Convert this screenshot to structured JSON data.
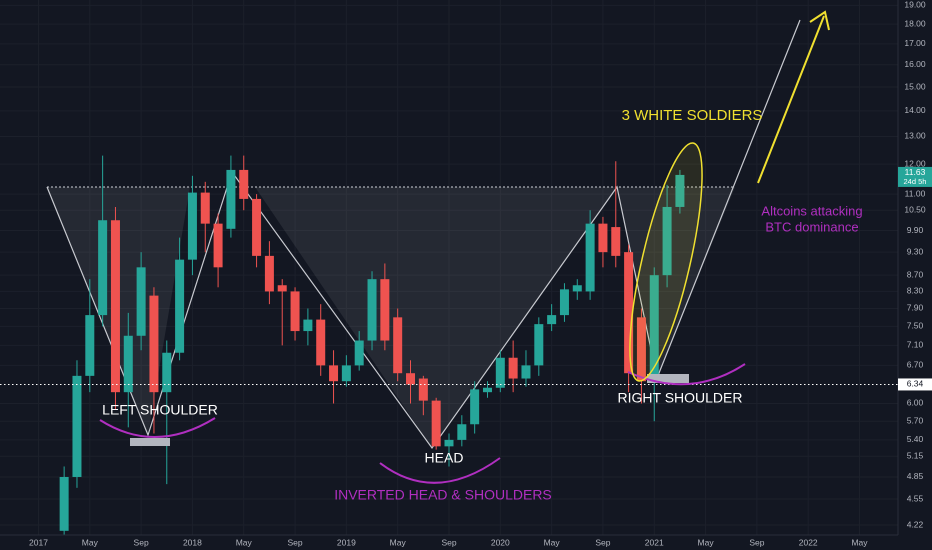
{
  "chart_data": {
    "type": "candlestick",
    "log_scale": true,
    "grid": true,
    "colors": {
      "up": "#26a69a",
      "down": "#ef5350"
    },
    "x": [
      "2017-03",
      "2017-04",
      "2017-05",
      "2017-06",
      "2017-07",
      "2017-08",
      "2017-09",
      "2017-10",
      "2017-11",
      "2017-12",
      "2018-01",
      "2018-02",
      "2018-03",
      "2018-04",
      "2018-05",
      "2018-06",
      "2018-07",
      "2018-08",
      "2018-09",
      "2018-10",
      "2018-11",
      "2018-12",
      "2019-01",
      "2019-02",
      "2019-03",
      "2019-04",
      "2019-05",
      "2019-06",
      "2019-07",
      "2019-08",
      "2019-09",
      "2019-10",
      "2019-11",
      "2019-12",
      "2020-01",
      "2020-02",
      "2020-03",
      "2020-04",
      "2020-05",
      "2020-06",
      "2020-07",
      "2020-08",
      "2020-09",
      "2020-10",
      "2020-11",
      "2020-12",
      "2021-01",
      "2021-02",
      "2021-03"
    ],
    "open": [
      4.15,
      4.85,
      6.5,
      7.75,
      10.2,
      6.2,
      7.3,
      8.2,
      6.2,
      6.95,
      9.1,
      11.05,
      10.1,
      9.95,
      11.8,
      10.85,
      9.2,
      8.45,
      8.3,
      7.4,
      7.65,
      6.7,
      6.4,
      6.7,
      7.2,
      8.6,
      7.7,
      6.55,
      6.45,
      6.05,
      5.3,
      5.4,
      5.65,
      6.2,
      6.28,
      6.85,
      6.45,
      6.7,
      7.55,
      7.75,
      8.3,
      8.3,
      10.1,
      10.0,
      9.3,
      7.7,
      6.4,
      8.7,
      10.6
    ],
    "high": [
      5.0,
      6.8,
      8.6,
      12.3,
      10.6,
      7.8,
      9.3,
      8.4,
      7.2,
      9.7,
      11.6,
      11.4,
      10.4,
      12.3,
      12.3,
      11.0,
      9.6,
      8.6,
      8.4,
      7.9,
      8.0,
      7.0,
      6.9,
      7.4,
      8.8,
      9.0,
      7.9,
      6.8,
      6.5,
      6.1,
      5.5,
      5.8,
      6.4,
      6.4,
      7.0,
      7.2,
      7.0,
      7.7,
      8.0,
      8.5,
      8.6,
      10.5,
      10.3,
      12.1,
      9.5,
      7.9,
      8.9,
      11.3,
      11.8
    ],
    "low": [
      4.1,
      4.7,
      6.2,
      7.5,
      5.9,
      5.6,
      7.0,
      5.5,
      4.75,
      6.8,
      8.7,
      9.3,
      8.4,
      9.7,
      10.5,
      8.9,
      8.0,
      7.1,
      7.2,
      7.1,
      6.5,
      6.0,
      6.3,
      6.6,
      7.0,
      7.0,
      6.4,
      6.0,
      5.8,
      5.25,
      5.0,
      5.3,
      5.5,
      6.1,
      6.2,
      6.2,
      6.3,
      6.5,
      7.4,
      7.6,
      8.1,
      8.1,
      8.9,
      8.9,
      6.2,
      6.0,
      5.7,
      8.4,
      10.4
    ],
    "close": [
      4.85,
      6.5,
      7.75,
      10.2,
      6.2,
      7.3,
      8.9,
      6.2,
      6.95,
      9.1,
      11.05,
      10.1,
      8.9,
      11.8,
      10.85,
      9.2,
      8.3,
      8.3,
      7.4,
      7.65,
      6.7,
      6.4,
      6.7,
      7.2,
      8.6,
      7.2,
      6.55,
      6.34,
      6.05,
      5.3,
      5.4,
      5.65,
      6.25,
      6.28,
      6.85,
      6.45,
      6.7,
      7.55,
      7.75,
      8.35,
      8.45,
      10.1,
      9.3,
      9.2,
      6.55,
      6.4,
      8.7,
      10.6,
      11.63
    ],
    "xlim": [
      "2016-10",
      "2022-08"
    ],
    "ylim": [
      4.1,
      19.3
    ],
    "xticks": [
      {
        "value": "2017-01",
        "label": "2017"
      },
      {
        "value": "2017-05",
        "label": "May"
      },
      {
        "value": "2017-09",
        "label": "Sep"
      },
      {
        "value": "2018-01",
        "label": "2018"
      },
      {
        "value": "2018-05",
        "label": "May"
      },
      {
        "value": "2018-09",
        "label": "Sep"
      },
      {
        "value": "2019-01",
        "label": "2019"
      },
      {
        "value": "2019-05",
        "label": "May"
      },
      {
        "value": "2019-09",
        "label": "Sep"
      },
      {
        "value": "2020-01",
        "label": "2020"
      },
      {
        "value": "2020-05",
        "label": "May"
      },
      {
        "value": "2020-09",
        "label": "Sep"
      },
      {
        "value": "2021-01",
        "label": "2021"
      },
      {
        "value": "2021-05",
        "label": "May"
      },
      {
        "value": "2021-09",
        "label": "Sep"
      },
      {
        "value": "2022-01",
        "label": "2022"
      },
      {
        "value": "2022-05",
        "label": "May"
      }
    ],
    "yticks": [
      {
        "value": 19,
        "label": "19.00"
      },
      {
        "value": 18,
        "label": "18.00"
      },
      {
        "value": 17,
        "label": "17.00"
      },
      {
        "value": 16,
        "label": "16.00"
      },
      {
        "value": 15,
        "label": "15.00"
      },
      {
        "value": 14,
        "label": "14.00"
      },
      {
        "value": 13,
        "label": "13.00"
      },
      {
        "value": 12,
        "label": "12.00"
      },
      {
        "value": 11,
        "label": "11.00"
      },
      {
        "value": 10.5,
        "label": "10.50"
      },
      {
        "value": 9.9,
        "label": "9.90"
      },
      {
        "value": 9.3,
        "label": "9.30"
      },
      {
        "value": 8.7,
        "label": "8.70"
      },
      {
        "value": 8.3,
        "label": "8.30"
      },
      {
        "value": 7.9,
        "label": "7.90"
      },
      {
        "value": 7.5,
        "label": "7.50"
      },
      {
        "value": 7.1,
        "label": "7.10"
      },
      {
        "value": 6.7,
        "label": "6.70"
      },
      {
        "value": 6,
        "label": "6.00"
      },
      {
        "value": 5.7,
        "label": "5.70"
      },
      {
        "value": 5.4,
        "label": "5.40"
      },
      {
        "value": 5.15,
        "label": "5.15"
      },
      {
        "value": 4.85,
        "label": "4.85"
      },
      {
        "value": 4.55,
        "label": "4.55"
      },
      {
        "value": 4.22,
        "label": "4.22"
      }
    ],
    "last_price": 11.63,
    "countdown": "24d 5h",
    "hline": 6.34,
    "annotations": [
      "LEFT SHOULDER",
      "HEAD",
      "INVERTED HEAD & SHOULDERS",
      "RIGHT SHOULDER",
      "3 WHITE SOLDIERS",
      "Altcoins attacking",
      "BTC dominance"
    ]
  }
}
